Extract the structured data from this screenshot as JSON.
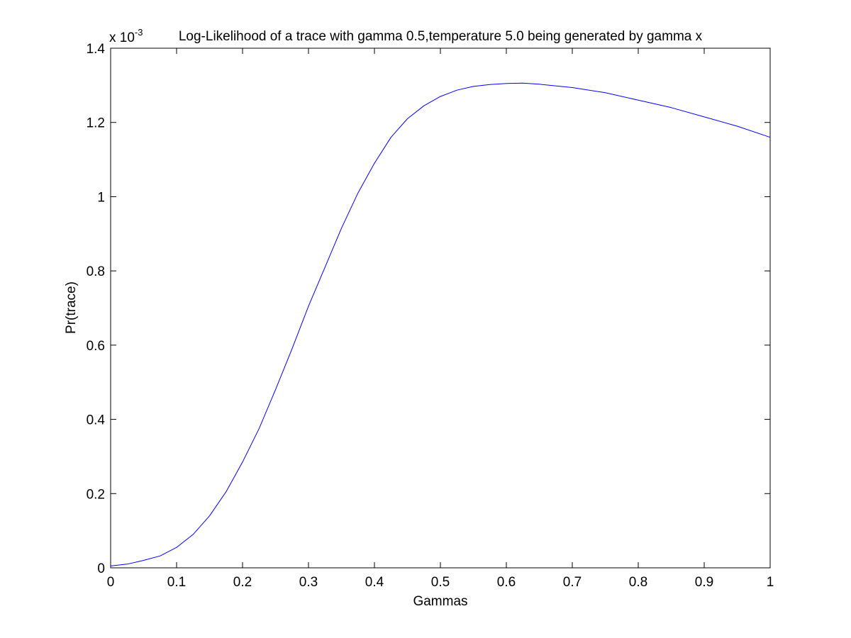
{
  "chart_data": {
    "type": "line",
    "title": "Log-Likelihood of a trace with gamma 0.5,temperature 5.0 being generated by gamma x",
    "xlabel": "Gammas",
    "ylabel": "Pr(trace)",
    "y_exponent_label": "x 10",
    "y_exponent": "-3",
    "xlim": [
      0,
      1
    ],
    "ylim": [
      0,
      1.4
    ],
    "xticks": [
      0,
      0.1,
      0.2,
      0.3,
      0.4,
      0.5,
      0.6,
      0.7,
      0.8,
      0.9,
      1
    ],
    "xtick_labels": [
      "0",
      "0.1",
      "0.2",
      "0.3",
      "0.4",
      "0.5",
      "0.6",
      "0.7",
      "0.8",
      "0.9",
      "1"
    ],
    "yticks": [
      0,
      0.2,
      0.4,
      0.6,
      0.8,
      1,
      1.2,
      1.4
    ],
    "ytick_labels": [
      "0",
      "0.2",
      "0.4",
      "0.6",
      "0.8",
      "1",
      "1.2",
      "1.4"
    ],
    "grid": false,
    "line_color": "#0000ff",
    "series": [
      {
        "x": [
          0,
          0.025,
          0.05,
          0.075,
          0.1,
          0.125,
          0.15,
          0.175,
          0.2,
          0.225,
          0.25,
          0.275,
          0.3,
          0.325,
          0.35,
          0.375,
          0.4,
          0.425,
          0.45,
          0.475,
          0.5,
          0.525,
          0.55,
          0.575,
          0.6,
          0.625,
          0.65,
          0.7,
          0.75,
          0.8,
          0.85,
          0.9,
          0.95,
          1.0
        ],
        "y": [
          0.005,
          0.01,
          0.02,
          0.032,
          0.055,
          0.09,
          0.14,
          0.205,
          0.285,
          0.375,
          0.48,
          0.59,
          0.705,
          0.81,
          0.915,
          1.01,
          1.09,
          1.16,
          1.21,
          1.245,
          1.27,
          1.287,
          1.297,
          1.302,
          1.305,
          1.306,
          1.303,
          1.294,
          1.28,
          1.26,
          1.24,
          1.215,
          1.19,
          1.16
        ]
      }
    ]
  }
}
